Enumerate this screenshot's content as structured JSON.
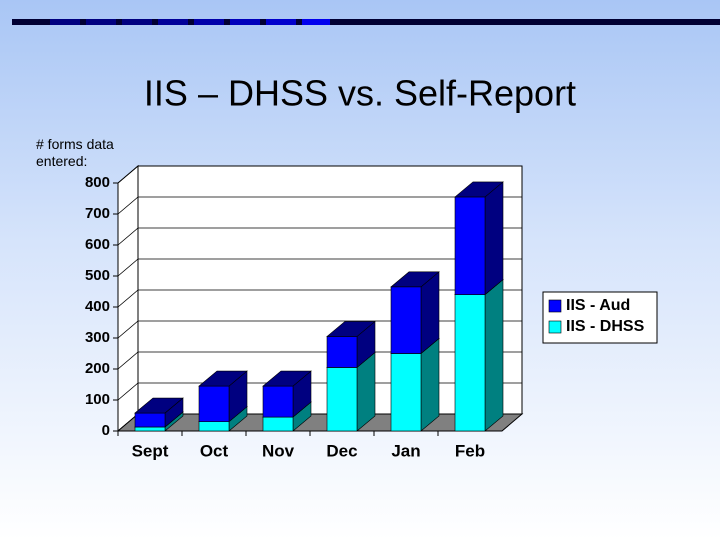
{
  "chart_data": {
    "type": "bar3d_stacked",
    "title": "IIS – DHSS vs. Self-Report",
    "y_label": "# forms data entered:",
    "categories": [
      "Sept",
      "Oct",
      "Nov",
      "Dec",
      "Jan",
      "Feb"
    ],
    "series": [
      {
        "name": "IIS - DHSS",
        "color": "#00ffff",
        "side_color": "#008080",
        "values": [
          13,
          30,
          45,
          205,
          250,
          440
        ]
      },
      {
        "name": "IIS - Aud",
        "color": "#0000ff",
        "side_color": "#000080",
        "values": [
          45,
          115,
          100,
          100,
          215,
          315
        ]
      }
    ],
    "ylim": [
      0,
      800
    ],
    "yticks": [
      0,
      100,
      200,
      300,
      400,
      500,
      600,
      700,
      800
    ],
    "grid": true,
    "legend": "right"
  }
}
